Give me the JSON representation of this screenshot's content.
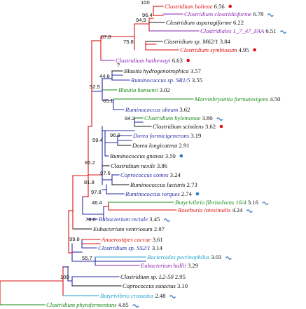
{
  "colors": {
    "red": "#dd1111",
    "purple": "#8b24b0",
    "blue": "#2c2fa6",
    "green": "#1b8a1b",
    "black": "#111111",
    "cyan": "#21a2cf",
    "dot": "#dd1111",
    "tilde": "#3f82c6",
    "blue_dot": "#2f77c0"
  },
  "legend_symbols": {
    "dot": "red-dot-icon",
    "tilde": "blue-tilde-icon",
    "blue_dot": "blue-dot-icon"
  },
  "leaves": [
    {
      "id": "bolteae",
      "name": "Clostridium bolteae",
      "value": "6.56",
      "color": "red",
      "marker": "dot"
    },
    {
      "id": "clostridioforme",
      "name": "Clostridium clostridioforme",
      "value": "6.78",
      "color": "purple",
      "marker": "tilde"
    },
    {
      "id": "asparagiforme",
      "name": "Clostridium asparagiforme",
      "value": "6.22",
      "color": "black",
      "marker": ""
    },
    {
      "id": "clostridiales",
      "name": "Clostridiales 1_7_47_FAA",
      "value": "6.51",
      "color": "purple",
      "marker": "tilde"
    },
    {
      "id": "m62",
      "name": "Clostridium sp. M62/1",
      "value": "3.84",
      "color": "black",
      "marker": ""
    },
    {
      "id": "symbiosum",
      "name": "Clostridium symbiosum",
      "value": "4.95",
      "color": "red",
      "marker": "dot"
    },
    {
      "id": "hathewayi",
      "name": "Clostridium hathewayi",
      "value": "6.63",
      "color": "purple",
      "marker": "dot"
    },
    {
      "id": "blautia_h",
      "name": "Blautia hydrogenotrophica",
      "value": "3.57",
      "color": "black",
      "marker": ""
    },
    {
      "id": "sr1",
      "name": "Ruminococcus sp. SR1/5",
      "value": "3.55",
      "color": "blue",
      "marker": ""
    },
    {
      "id": "hansenii",
      "name": "Blautia hansenii",
      "value": "3.02",
      "color": "green",
      "marker": ""
    },
    {
      "id": "marvin",
      "name": "Marvinbryantia formatexigens",
      "value": "4.50",
      "color": "green",
      "marker": ""
    },
    {
      "id": "obeum",
      "name": "Ruminococcus obeum",
      "value": "3.62",
      "color": "blue",
      "marker": ""
    },
    {
      "id": "hylemonae",
      "name": "Clostridium hylemonae",
      "value": "3.80",
      "color": "green",
      "marker": "tilde"
    },
    {
      "id": "scindens",
      "name": "Clostridium scindens",
      "value": "3.62",
      "color": "black",
      "marker": "dot"
    },
    {
      "id": "formici",
      "name": "Dorea formicigenerans",
      "value": "3.19",
      "color": "blue",
      "marker": ""
    },
    {
      "id": "longicatena",
      "name": "Dorea longicatena",
      "value": "2.91",
      "color": "black",
      "marker": ""
    },
    {
      "id": "gnavus",
      "name": "Ruminococcus gnavus",
      "value": "3.50",
      "color": "black",
      "marker": "blue_dot"
    },
    {
      "id": "nexile",
      "name": "Clostridium nexile",
      "value": "3.86",
      "color": "black",
      "marker": ""
    },
    {
      "id": "comes",
      "name": "Coprococcus comes",
      "value": "3.24",
      "color": "blue",
      "marker": ""
    },
    {
      "id": "lactaris",
      "name": "Ruminococcus lactaris",
      "value": "2.73",
      "color": "black",
      "marker": ""
    },
    {
      "id": "torques",
      "name": "Ruminococcus torques",
      "value": "2.74",
      "color": "blue",
      "marker": "blue_dot"
    },
    {
      "id": "butyri",
      "name": "Butyrivibrio fibrisolvens 16/4",
      "value": "3.16",
      "color": "green",
      "marker": "tilde"
    },
    {
      "id": "roseburia",
      "name": "Roseburia intestinalis",
      "value": "4.24",
      "color": "red",
      "marker": "tilde"
    },
    {
      "id": "rectale",
      "name": "Bubacterium rectale",
      "value": "3.45",
      "color": "blue",
      "marker": "tilde"
    },
    {
      "id": "ventriosum",
      "name": "Eubacterium ventriosum",
      "value": "2.87",
      "color": "black",
      "marker": ""
    },
    {
      "id": "anaerostipes",
      "name": "Anaerostipes caccae",
      "value": "3.61",
      "color": "red",
      "marker": ""
    },
    {
      "id": "ss21",
      "name": "Clostridium sp. SS2/1",
      "value": "3.14",
      "color": "blue",
      "marker": ""
    },
    {
      "id": "bacteroides",
      "name": "Bacteroides pectinophilus",
      "value": "3.03",
      "color": "cyan",
      "marker": "tilde"
    },
    {
      "id": "hallii",
      "name": "Eubacterium hallii",
      "value": "3.29",
      "color": "purple",
      "marker": ""
    },
    {
      "id": "l250",
      "name": "Clostridium sp. L2-50",
      "value": "2.95",
      "color": "black",
      "marker": ""
    },
    {
      "id": "eutactus",
      "name": "Coprococcus eutactus",
      "value": "3.10",
      "color": "black",
      "marker": ""
    },
    {
      "id": "crossotus",
      "name": "Butyrivibrio crossotus",
      "value": "2.48",
      "color": "cyan",
      "marker": "tilde"
    },
    {
      "id": "phyto",
      "name": "Clostridium phytofermentans",
      "value": "4.85",
      "color": "green",
      "marker": "tilde"
    }
  ],
  "bootstrap_labels": [
    {
      "id": "b100a",
      "text": "100"
    },
    {
      "id": "b964",
      "text": "96.4"
    },
    {
      "id": "b949",
      "text": "94.9"
    },
    {
      "id": "b758",
      "text": "75.8"
    },
    {
      "id": "b678",
      "text": "67.8"
    },
    {
      "id": "bq",
      "text": "?"
    },
    {
      "id": "b448",
      "text": "44.8"
    },
    {
      "id": "b525",
      "text": "52.5"
    },
    {
      "id": "b651",
      "text": "65.1"
    },
    {
      "id": "b942",
      "text": "94.2"
    },
    {
      "id": "b969",
      "text": "96.9"
    },
    {
      "id": "b594",
      "text": "59.4"
    },
    {
      "id": "b852",
      "text": "85.2"
    },
    {
      "id": "b976",
      "text": "97.6"
    },
    {
      "id": "b818",
      "text": "81.8"
    },
    {
      "id": "b978",
      "text": "97.8"
    },
    {
      "id": "b464",
      "text": "46.4"
    },
    {
      "id": "b780",
      "text": "78.0"
    },
    {
      "id": "b998",
      "text": "99.8"
    },
    {
      "id": "b557",
      "text": "55.7"
    },
    {
      "id": "b100b",
      "text": "100"
    }
  ]
}
